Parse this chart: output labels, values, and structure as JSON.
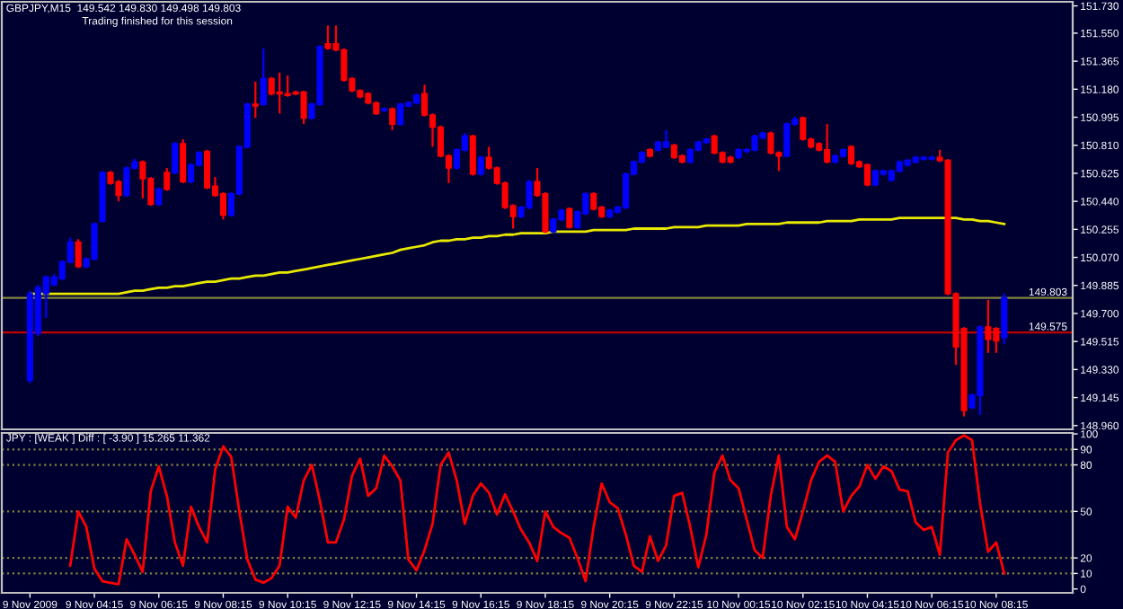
{
  "chart_data": [
    {
      "type": "candlestick",
      "title": "GBPJPY,M15  149.542 149.830 149.498 149.803",
      "annotations": [
        "Trading finished for this session"
      ],
      "categories": [
        null,
        null,
        null,
        null,
        null,
        null,
        null,
        null,
        null,
        null,
        null,
        null,
        null,
        null,
        null,
        null,
        null,
        null,
        null,
        null,
        null,
        null,
        null,
        null,
        null,
        null,
        null,
        null,
        null,
        null,
        null,
        null,
        null,
        null,
        null,
        null,
        null,
        null,
        null,
        null,
        null,
        null,
        null,
        null,
        null,
        null,
        null,
        null,
        null,
        null,
        null,
        null,
        null,
        null,
        null,
        null,
        null,
        null,
        null,
        null,
        null,
        null,
        null,
        null,
        null,
        null,
        null,
        null,
        null,
        null,
        null,
        null,
        null,
        null,
        null,
        null,
        null,
        null,
        null,
        null,
        null,
        null,
        null,
        null,
        null,
        null,
        null,
        null,
        null,
        null,
        null,
        null,
        null,
        null,
        null,
        null,
        null,
        null,
        null,
        null,
        null,
        null,
        null,
        null,
        null,
        null,
        null,
        null,
        null,
        null,
        null,
        null,
        null,
        null,
        null,
        null,
        null,
        null,
        null,
        null,
        null,
        null
      ],
      "ohlc": [
        [
          149.26,
          149.85,
          149.24,
          149.83
        ],
        [
          149.57,
          149.89,
          149.55,
          149.87
        ],
        [
          149.83,
          149.95,
          149.67,
          149.94
        ],
        [
          149.89,
          149.96,
          149.88,
          149.94
        ],
        [
          149.93,
          150.05,
          149.92,
          150.04
        ],
        [
          150.04,
          150.2,
          150.03,
          150.17
        ],
        [
          150.17,
          150.19,
          150.0,
          150.01
        ],
        [
          150.01,
          150.07,
          150.0,
          150.06
        ],
        [
          150.06,
          150.3,
          150.05,
          150.29
        ],
        [
          150.31,
          150.64,
          150.3,
          150.63
        ],
        [
          150.63,
          150.64,
          150.55,
          150.56
        ],
        [
          150.57,
          150.58,
          150.44,
          150.48
        ],
        [
          150.48,
          150.67,
          150.47,
          150.66
        ],
        [
          150.66,
          150.72,
          150.65,
          150.7
        ],
        [
          150.7,
          150.71,
          150.46,
          150.59
        ],
        [
          150.59,
          150.6,
          150.41,
          150.42
        ],
        [
          150.42,
          150.53,
          150.41,
          150.52
        ],
        [
          150.63,
          150.66,
          150.51,
          150.52
        ],
        [
          150.63,
          150.83,
          150.62,
          150.82
        ],
        [
          150.82,
          150.85,
          150.56,
          150.57
        ],
        [
          150.57,
          150.69,
          150.56,
          150.68
        ],
        [
          150.68,
          150.77,
          150.67,
          150.76
        ],
        [
          150.77,
          150.78,
          150.52,
          150.53
        ],
        [
          150.54,
          150.6,
          150.47,
          150.48
        ],
        [
          150.49,
          150.5,
          150.32,
          150.35
        ],
        [
          150.35,
          150.5,
          150.34,
          150.49
        ],
        [
          150.49,
          150.81,
          150.48,
          150.8
        ],
        [
          150.8,
          151.09,
          150.79,
          151.08
        ],
        [
          151.08,
          151.23,
          150.99,
          151.07
        ],
        [
          151.08,
          151.45,
          151.07,
          151.25
        ],
        [
          151.25,
          151.26,
          151.14,
          151.15
        ],
        [
          151.16,
          151.29,
          151.02,
          151.15
        ],
        [
          151.15,
          151.27,
          151.13,
          151.14
        ],
        [
          151.16,
          151.17,
          151.14,
          151.15
        ],
        [
          151.16,
          151.17,
          150.95,
          150.99
        ],
        [
          150.99,
          151.09,
          150.98,
          151.08
        ],
        [
          151.08,
          151.47,
          151.07,
          151.46
        ],
        [
          151.48,
          151.6,
          151.44,
          151.45
        ],
        [
          151.48,
          151.6,
          151.43,
          151.44
        ],
        [
          151.44,
          151.45,
          151.23,
          151.24
        ],
        [
          151.25,
          151.26,
          151.16,
          151.17
        ],
        [
          151.17,
          151.18,
          151.12,
          151.13
        ],
        [
          151.15,
          151.16,
          151.08,
          151.09
        ],
        [
          151.09,
          151.1,
          151.01,
          151.02
        ],
        [
          151.04,
          151.06,
          151.03,
          151.05
        ],
        [
          151.05,
          151.06,
          150.91,
          150.95
        ],
        [
          150.95,
          151.09,
          150.94,
          151.08
        ],
        [
          151.07,
          151.1,
          151.06,
          151.09
        ],
        [
          151.09,
          151.15,
          151.08,
          151.14
        ],
        [
          151.15,
          151.21,
          151.0,
          151.01
        ],
        [
          151.01,
          151.02,
          150.8,
          150.93
        ],
        [
          150.93,
          150.94,
          150.73,
          150.74
        ],
        [
          150.74,
          150.75,
          150.56,
          150.66
        ],
        [
          150.66,
          150.79,
          150.65,
          150.78
        ],
        [
          150.78,
          150.89,
          150.77,
          150.87
        ],
        [
          150.87,
          150.88,
          150.61,
          150.62
        ],
        [
          150.62,
          150.74,
          150.61,
          150.73
        ],
        [
          150.73,
          150.8,
          150.65,
          150.66
        ],
        [
          150.66,
          150.67,
          150.55,
          150.56
        ],
        [
          150.56,
          150.57,
          150.39,
          150.4
        ],
        [
          150.41,
          150.42,
          150.26,
          150.34
        ],
        [
          150.34,
          150.41,
          150.33,
          150.4
        ],
        [
          150.4,
          150.58,
          150.39,
          150.57
        ],
        [
          150.57,
          150.66,
          150.47,
          150.48
        ],
        [
          150.49,
          150.5,
          150.23,
          150.24
        ],
        [
          150.24,
          150.33,
          150.23,
          150.32
        ],
        [
          150.32,
          150.39,
          150.31,
          150.38
        ],
        [
          150.39,
          150.4,
          150.26,
          150.27
        ],
        [
          150.27,
          150.38,
          150.26,
          150.37
        ],
        [
          150.36,
          150.5,
          150.35,
          150.49
        ],
        [
          150.49,
          150.5,
          150.38,
          150.39
        ],
        [
          150.4,
          150.41,
          150.33,
          150.34
        ],
        [
          150.34,
          150.39,
          150.33,
          150.38
        ],
        [
          150.37,
          150.41,
          150.36,
          150.4
        ],
        [
          150.4,
          150.63,
          150.39,
          150.62
        ],
        [
          150.62,
          150.71,
          150.61,
          150.7
        ],
        [
          150.7,
          150.77,
          150.69,
          150.76
        ],
        [
          150.78,
          150.79,
          150.73,
          150.74
        ],
        [
          150.78,
          150.84,
          150.77,
          150.83
        ],
        [
          150.8,
          150.91,
          150.79,
          150.83
        ],
        [
          150.81,
          150.82,
          150.72,
          150.73
        ],
        [
          150.74,
          150.75,
          150.69,
          150.7
        ],
        [
          150.7,
          150.79,
          150.69,
          150.78
        ],
        [
          150.78,
          150.84,
          150.77,
          150.83
        ],
        [
          150.83,
          150.86,
          150.82,
          150.85
        ],
        [
          150.87,
          150.88,
          150.75,
          150.76
        ],
        [
          150.76,
          150.77,
          150.69,
          150.7
        ],
        [
          150.73,
          150.74,
          150.69,
          150.7
        ],
        [
          150.73,
          150.79,
          150.72,
          150.78
        ],
        [
          150.77,
          150.79,
          150.76,
          150.78
        ],
        [
          150.78,
          150.88,
          150.77,
          150.87
        ],
        [
          150.86,
          150.9,
          150.85,
          150.89
        ],
        [
          150.89,
          150.9,
          150.75,
          150.76
        ],
        [
          150.76,
          150.77,
          150.64,
          150.74
        ],
        [
          150.74,
          150.96,
          150.73,
          150.95
        ],
        [
          150.95,
          151.0,
          150.94,
          150.98
        ],
        [
          150.99,
          151.0,
          150.84,
          150.85
        ],
        [
          150.85,
          150.86,
          150.79,
          150.8
        ],
        [
          150.82,
          150.83,
          150.77,
          150.78
        ],
        [
          150.78,
          150.95,
          150.69,
          150.7
        ],
        [
          150.7,
          150.75,
          150.69,
          150.74
        ],
        [
          150.74,
          150.79,
          150.73,
          150.78
        ],
        [
          150.8,
          150.81,
          150.68,
          150.69
        ],
        [
          150.7,
          150.71,
          150.66,
          150.67
        ],
        [
          150.68,
          150.69,
          150.54,
          150.55
        ],
        [
          150.55,
          150.65,
          150.54,
          150.64
        ],
        [
          150.62,
          150.65,
          150.61,
          150.64
        ],
        [
          150.58,
          150.65,
          150.57,
          150.64
        ],
        [
          150.64,
          150.71,
          150.63,
          150.7
        ],
        [
          150.68,
          150.72,
          150.67,
          150.71
        ],
        [
          150.7,
          150.74,
          150.69,
          150.73
        ],
        [
          150.72,
          150.74,
          150.71,
          150.73
        ],
        [
          150.72,
          150.74,
          150.71,
          150.73
        ],
        [
          150.73,
          150.78,
          150.7,
          150.71
        ],
        [
          150.71,
          150.72,
          149.82,
          149.83
        ],
        [
          149.83,
          149.84,
          149.36,
          149.48
        ],
        [
          149.6,
          149.61,
          149.02,
          149.06
        ],
        [
          149.08,
          149.17,
          149.07,
          149.16
        ],
        [
          149.16,
          149.62,
          149.03,
          149.61
        ],
        [
          149.61,
          149.79,
          149.44,
          149.53
        ],
        [
          149.6,
          149.61,
          149.44,
          149.52
        ],
        [
          149.542,
          149.83,
          149.498,
          149.803
        ]
      ],
      "series": [
        {
          "type": "line",
          "color": "#e8e800",
          "values": [
            149.83,
            149.83,
            149.83,
            149.83,
            149.83,
            149.83,
            149.83,
            149.83,
            149.83,
            149.83,
            149.83,
            149.83,
            149.84,
            149.85,
            149.85,
            149.86,
            149.87,
            149.87,
            149.88,
            149.88,
            149.89,
            149.9,
            149.91,
            149.91,
            149.92,
            149.93,
            149.93,
            149.94,
            149.95,
            149.95,
            149.96,
            149.97,
            149.97,
            149.98,
            149.99,
            150.0,
            150.01,
            150.02,
            150.03,
            150.04,
            150.05,
            150.06,
            150.07,
            150.08,
            150.09,
            150.1,
            150.12,
            150.13,
            150.14,
            150.15,
            150.17,
            150.18,
            150.18,
            150.19,
            150.19,
            150.2,
            150.2,
            150.21,
            150.21,
            150.22,
            150.22,
            150.23,
            150.23,
            150.23,
            150.23,
            150.24,
            150.24,
            150.24,
            150.24,
            150.24,
            150.25,
            150.25,
            150.25,
            150.25,
            150.25,
            150.26,
            150.26,
            150.26,
            150.26,
            150.26,
            150.27,
            150.27,
            150.27,
            150.27,
            150.28,
            150.28,
            150.28,
            150.28,
            150.28,
            150.29,
            150.29,
            150.29,
            150.29,
            150.29,
            150.3,
            150.3,
            150.3,
            150.3,
            150.3,
            150.31,
            150.31,
            150.31,
            150.31,
            150.32,
            150.32,
            150.32,
            150.32,
            150.32,
            150.33,
            150.33,
            150.33,
            150.33,
            150.33,
            150.33,
            150.33,
            150.33,
            150.32,
            150.32,
            150.31,
            150.31,
            150.3,
            150.29
          ]
        }
      ],
      "ylim": [
        148.935,
        151.757
      ],
      "yticks": [
        {
          "value": 148.96,
          "label": "148.960"
        },
        {
          "value": 149.145,
          "label": "149.145"
        },
        {
          "value": 149.33,
          "label": "149.330"
        },
        {
          "value": 149.515,
          "label": "149.515"
        },
        {
          "value": 149.7,
          "label": "149.700"
        },
        {
          "value": 149.885,
          "label": "149.885"
        },
        {
          "value": 150.07,
          "label": "150.070"
        },
        {
          "value": 150.255,
          "label": "150.255"
        },
        {
          "value": 150.44,
          "label": "150.440"
        },
        {
          "value": 150.625,
          "label": "150.625"
        },
        {
          "value": 150.81,
          "label": "150.810"
        },
        {
          "value": 150.995,
          "label": "150.995"
        },
        {
          "value": 151.18,
          "label": "151.180"
        },
        {
          "value": 151.365,
          "label": "151.365"
        },
        {
          "value": 151.55,
          "label": "151.550"
        },
        {
          "value": 151.73,
          "label": "151.730"
        }
      ],
      "ref_lines": [
        {
          "axis": "y",
          "value": 149.803,
          "label": "149.803",
          "color": "#808040"
        },
        {
          "axis": "y",
          "value": 149.575,
          "label": "149.575",
          "color": "#c00000"
        }
      ]
    },
    {
      "type": "line",
      "title": "JPY : [WEAK ] Diff : [ -3.90 ] 15.265 11.362",
      "categories": [
        "9 Nov 2009",
        null,
        null,
        null,
        null,
        null,
        null,
        null,
        "9 Nov 04:15",
        null,
        null,
        null,
        null,
        null,
        null,
        null,
        "9 Nov 06:15",
        null,
        null,
        null,
        null,
        null,
        null,
        null,
        "9 Nov 08:15",
        null,
        null,
        null,
        null,
        null,
        null,
        null,
        "9 Nov 10:15",
        null,
        null,
        null,
        null,
        null,
        null,
        null,
        "9 Nov 12:15",
        null,
        null,
        null,
        null,
        null,
        null,
        null,
        "9 Nov 14:15",
        null,
        null,
        null,
        null,
        null,
        null,
        null,
        "9 Nov 16:15",
        null,
        null,
        null,
        null,
        null,
        null,
        null,
        "9 Nov 18:15",
        null,
        null,
        null,
        null,
        null,
        null,
        null,
        "9 Nov 20:15",
        null,
        null,
        null,
        null,
        null,
        null,
        null,
        "9 Nov 22:15",
        null,
        null,
        null,
        null,
        null,
        null,
        null,
        "10 Nov 00:15",
        null,
        null,
        null,
        null,
        null,
        null,
        null,
        "10 Nov 02:15",
        null,
        null,
        null,
        null,
        null,
        null,
        null,
        "10 Nov 04:15",
        null,
        null,
        null,
        null,
        null,
        null,
        null,
        "10 Nov 06:15",
        null,
        null,
        null,
        null,
        null,
        null,
        null,
        "10 Nov 08:15",
        null
      ],
      "series": [
        {
          "color": "#ff0000",
          "values": [
            null,
            null,
            null,
            null,
            null,
            15,
            50,
            40,
            13,
            5,
            4,
            3,
            32,
            22,
            11,
            63,
            79,
            60,
            30,
            15,
            53,
            40,
            30,
            77,
            92,
            85,
            50,
            19,
            6,
            4,
            7,
            15,
            53,
            46,
            70,
            80,
            57,
            30,
            30,
            45,
            73,
            84,
            60,
            65,
            86,
            79,
            70,
            19,
            12,
            25,
            42,
            80,
            88,
            70,
            42,
            60,
            68,
            62,
            48,
            61,
            50,
            38,
            30,
            18,
            50,
            40,
            36,
            33,
            20,
            5,
            40,
            68,
            56,
            52,
            35,
            15,
            11,
            34,
            18,
            28,
            60,
            62,
            40,
            14,
            35,
            75,
            86,
            70,
            65,
            45,
            25,
            20,
            60,
            86,
            40,
            32,
            50,
            70,
            82,
            86,
            82,
            50,
            60,
            66,
            80,
            71,
            79,
            76,
            64,
            63,
            43,
            38,
            40,
            22,
            88,
            96,
            99,
            96,
            55,
            24,
            30,
            10
          ]
        }
      ],
      "ylim": [
        -2.5,
        100.6
      ],
      "yticks": [
        0,
        10,
        20,
        50,
        80,
        90,
        100
      ],
      "ref_lines": [
        {
          "axis": "y",
          "value": 10,
          "color": "#808040",
          "line_style": "dotted"
        },
        {
          "axis": "y",
          "value": 20,
          "color": "#808040",
          "line_style": "dotted"
        },
        {
          "axis": "y",
          "value": 50,
          "color": "#808040",
          "line_style": "dotted"
        },
        {
          "axis": "y",
          "value": 80,
          "color": "#808040",
          "line_style": "dotted"
        },
        {
          "axis": "y",
          "value": 90,
          "color": "#808040",
          "line_style": "dotted"
        }
      ]
    }
  ]
}
